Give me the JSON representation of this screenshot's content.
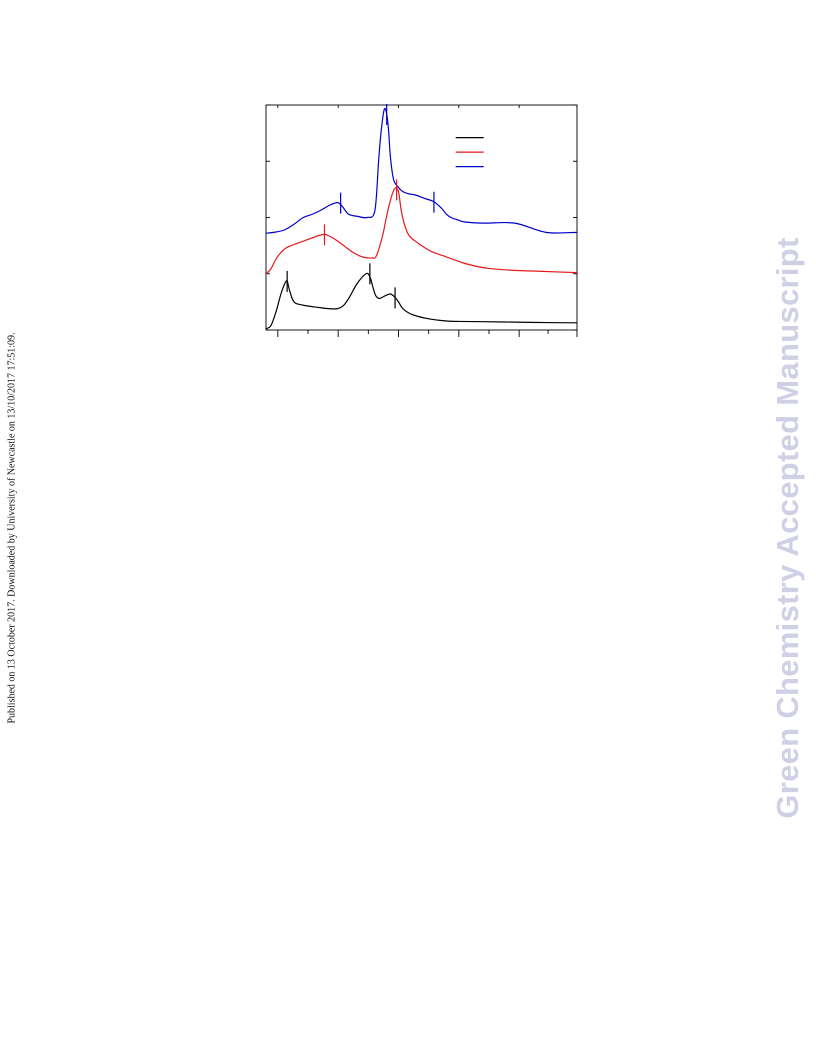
{
  "page": {
    "side_note": "Published on 13 October 2017. Downloaded by University of Newcastle on 13/10/2017 17:51:09.",
    "watermark": "Green Chemistry Accepted Manuscript"
  },
  "chart_data": {
    "type": "line",
    "title": "",
    "xlabel": "",
    "ylabel": "",
    "xlim": [
      0,
      100
    ],
    "ylim": [
      0,
      100
    ],
    "x_ticks": [
      3.8,
      23.2,
      42.6,
      62.0,
      81.4,
      100
    ],
    "grid": false,
    "legend": {
      "placement": "top-right",
      "entries": [
        "",
        "",
        ""
      ]
    },
    "colors": [
      "#000000",
      "#e41a1c",
      "#0000cc"
    ],
    "series": [
      {
        "color": "#000000",
        "x": [
          0,
          1.6,
          3.2,
          4.8,
          6.0,
          6.8,
          7.5,
          9.0,
          12.0,
          17.0,
          20.0,
          23.0,
          25.0,
          27.0,
          29.0,
          31.0,
          32.5,
          33.4,
          34.2,
          35.2,
          36.4,
          38.0,
          40.0,
          41.5,
          42.6,
          44.0,
          46.0,
          49.0,
          53.0,
          58.0,
          62.0,
          70.0,
          80.0,
          90.0,
          100.0
        ],
        "y": [
          0.5,
          2,
          8,
          16,
          20.5,
          21.8,
          18,
          12.5,
          11,
          10,
          9.5,
          9.5,
          11,
          15,
          20,
          23.6,
          25.2,
          23.7,
          20,
          15.5,
          14,
          15,
          16,
          14.5,
          12.5,
          9.5,
          7.5,
          6,
          4.8,
          4,
          3.8,
          3.7,
          3.5,
          3.3,
          3.2
        ]
      },
      {
        "color": "#e41a1c",
        "x": [
          0,
          1.5,
          3.0,
          4.5,
          6.5,
          9.0,
          12.0,
          15.0,
          17.0,
          18.8,
          20.0,
          22.0,
          25.0,
          28.0,
          31.0,
          34.0,
          35.5,
          37.5,
          39.0,
          40.5,
          41.5,
          42.5,
          43.0,
          43.5,
          44.5,
          46.0,
          49.0,
          53.0,
          58.0,
          63.0,
          67.0,
          72.0,
          80.0,
          90.0,
          100.0
        ],
        "y": [
          25,
          27,
          31,
          34,
          36.5,
          38,
          39.5,
          41,
          42,
          42.5,
          42,
          40.5,
          37.5,
          34.5,
          32.5,
          32,
          33,
          42,
          52,
          60,
          63,
          62,
          58,
          53,
          47,
          42,
          38.5,
          35,
          32.5,
          30,
          28.5,
          27.3,
          26.5,
          26,
          25.5
        ]
      },
      {
        "color": "#0000cc",
        "x": [
          0,
          3.0,
          6.0,
          9.0,
          12.0,
          15.0,
          18.0,
          20.5,
          23.0,
          24.5,
          26.5,
          29.5,
          32.5,
          35.0,
          36.2,
          37.0,
          38.0,
          38.8,
          39.4,
          40.0,
          41.0,
          42.5,
          44.0,
          46.0,
          48.0,
          51.0,
          54.0,
          56.5,
          58.0,
          59.5,
          61.5,
          64.0,
          70.0,
          80.0,
          90.0,
          100.0
        ],
        "y": [
          43,
          43.5,
          44.5,
          47,
          50,
          51.5,
          53.5,
          55.5,
          56.6,
          55,
          51.5,
          50.5,
          50,
          53,
          75,
          88,
          98,
          96,
          89,
          77,
          67,
          63.5,
          61.5,
          60.5,
          60,
          58.5,
          57,
          54,
          51.5,
          50,
          49,
          48,
          47.5,
          47.5,
          43.4,
          43.4
        ]
      }
    ],
    "annotations": [
      {
        "series": 0,
        "x": 6.8,
        "y": 21.8
      },
      {
        "series": 0,
        "x": 33.4,
        "y": 25.2
      },
      {
        "series": 0,
        "x": 41.5,
        "y": 14.5
      },
      {
        "series": 1,
        "x": 18.8,
        "y": 42.5
      },
      {
        "series": 1,
        "x": 42.0,
        "y": 62.5
      },
      {
        "series": 2,
        "x": 24.0,
        "y": 56.6
      },
      {
        "series": 2,
        "x": 38.8,
        "y": 96
      },
      {
        "series": 2,
        "x": 54.0,
        "y": 57
      }
    ]
  }
}
